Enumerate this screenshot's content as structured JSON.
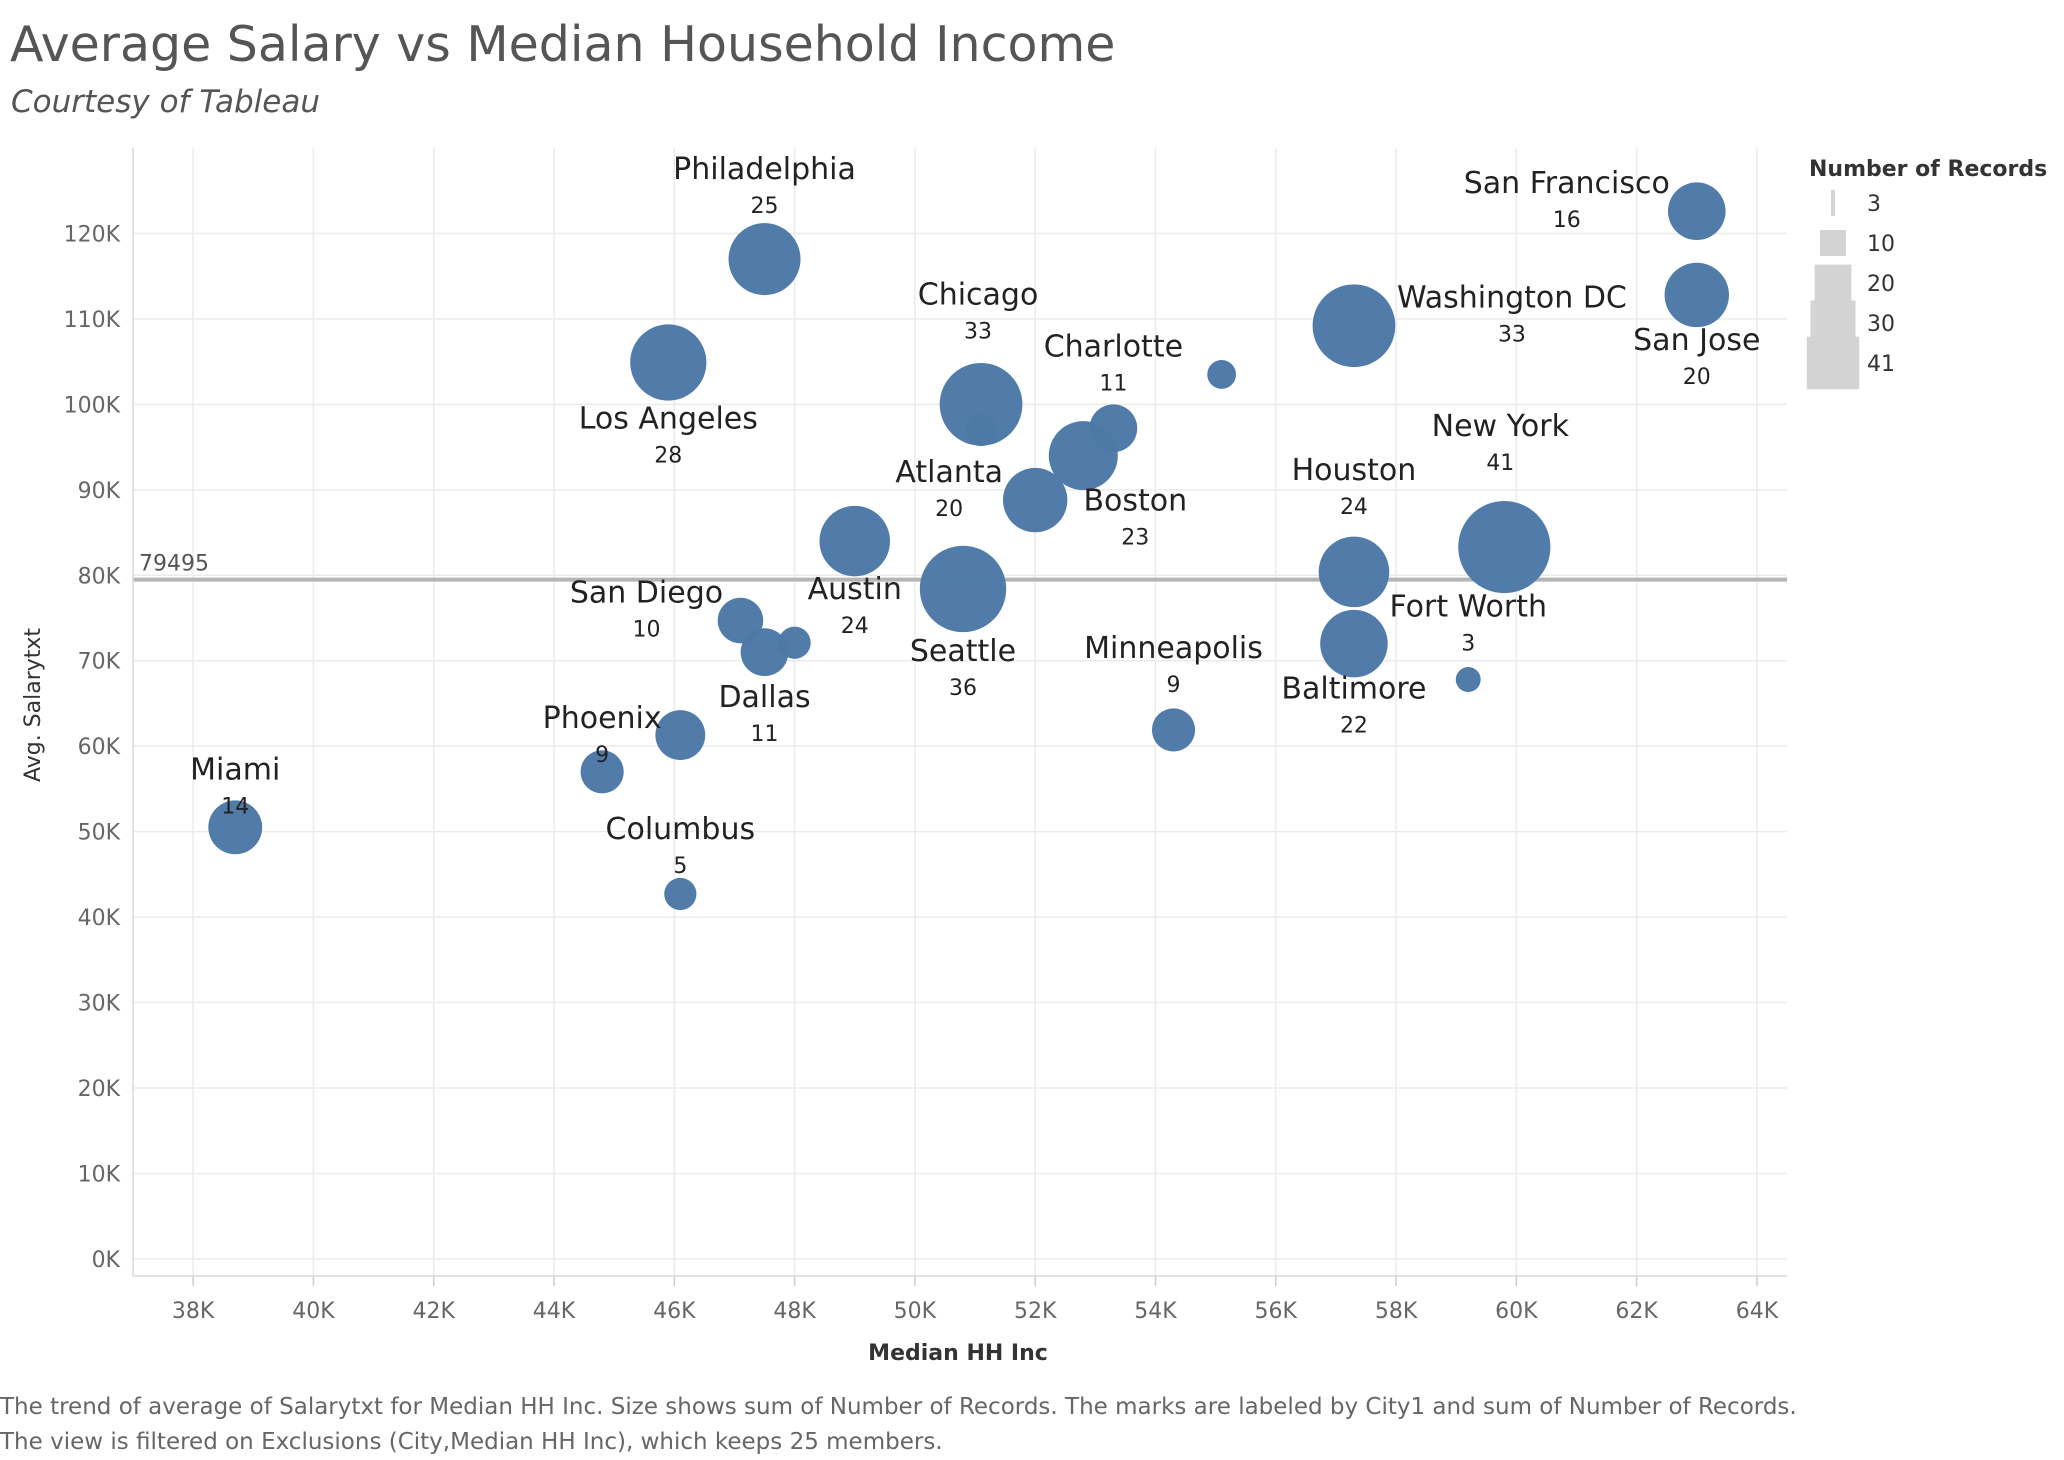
{
  "header": {
    "title": "Average Salary vs Median Household Income",
    "subtitle": "Courtesy of Tableau"
  },
  "chart_data": {
    "type": "scatter",
    "xlabel": "Median HH Inc",
    "ylabel": "Avg. Salarytxt",
    "xlim": [
      37000,
      64500
    ],
    "ylim": [
      -2000,
      130000
    ],
    "x_ticks": [
      38000,
      40000,
      42000,
      44000,
      46000,
      48000,
      50000,
      52000,
      54000,
      56000,
      58000,
      60000,
      62000,
      64000
    ],
    "x_tick_labels": [
      "38K",
      "40K",
      "42K",
      "44K",
      "46K",
      "48K",
      "50K",
      "52K",
      "54K",
      "56K",
      "58K",
      "60K",
      "62K",
      "64K"
    ],
    "y_ticks": [
      0,
      10000,
      20000,
      30000,
      40000,
      50000,
      60000,
      70000,
      80000,
      90000,
      100000,
      110000,
      120000
    ],
    "y_tick_labels": [
      "0K",
      "10K",
      "20K",
      "30K",
      "40K",
      "50K",
      "60K",
      "70K",
      "80K",
      "90K",
      "100K",
      "110K",
      "120K"
    ],
    "grid": true,
    "reference_line": {
      "value": 79495,
      "label": "79495"
    },
    "mark_color": "#4e79a7",
    "legend": {
      "title": "Number of Records",
      "position": "right",
      "entries": [
        {
          "value": 3,
          "label": "3"
        },
        {
          "value": 10,
          "label": "10"
        },
        {
          "value": 20,
          "label": "20"
        },
        {
          "value": 30,
          "label": "30"
        },
        {
          "value": 41,
          "label": "41"
        }
      ]
    },
    "points": [
      {
        "city": "Miami",
        "x": 38700,
        "y": 50500,
        "records": 14,
        "label": true
      },
      {
        "city": "Phoenix",
        "x": 44800,
        "y": 57000,
        "records": 9,
        "label": true
      },
      {
        "city": "Columbus",
        "x": 46100,
        "y": 42700,
        "records": 5,
        "label": true
      },
      {
        "city": "",
        "x": 46100,
        "y": 61300,
        "records": 12,
        "label": false
      },
      {
        "city": "Los Angeles",
        "x": 45900,
        "y": 104900,
        "records": 28,
        "label": true
      },
      {
        "city": "San Diego",
        "x": 47100,
        "y": 74700,
        "records": 10,
        "label": true
      },
      {
        "city": "Dallas",
        "x": 47500,
        "y": 71000,
        "records": 11,
        "label": true
      },
      {
        "city": "",
        "x": 48000,
        "y": 72100,
        "records": 5,
        "label": false
      },
      {
        "city": "Philadelphia",
        "x": 47500,
        "y": 117000,
        "records": 25,
        "label": true
      },
      {
        "city": "Austin",
        "x": 49000,
        "y": 84000,
        "records": 24,
        "label": true
      },
      {
        "city": "Seattle",
        "x": 50800,
        "y": 78400,
        "records": 36,
        "label": true
      },
      {
        "city": "Chicago",
        "x": 51100,
        "y": 100000,
        "records": 33,
        "label": true
      },
      {
        "city": "",
        "x": 51100,
        "y": 97000,
        "records": 5,
        "label": false
      },
      {
        "city": "Atlanta",
        "x": 52000,
        "y": 88800,
        "records": 20,
        "label": true
      },
      {
        "city": "Boston",
        "x": 52800,
        "y": 94000,
        "records": 23,
        "label": true
      },
      {
        "city": "Charlotte",
        "x": 53300,
        "y": 97200,
        "records": 11,
        "label": true
      },
      {
        "city": "Minneapolis",
        "x": 54300,
        "y": 61900,
        "records": 9,
        "label": true
      },
      {
        "city": "",
        "x": 55100,
        "y": 103500,
        "records": 4,
        "label": false
      },
      {
        "city": "Washington DC",
        "x": 57300,
        "y": 109200,
        "records": 33,
        "label": true
      },
      {
        "city": "Houston",
        "x": 57300,
        "y": 80400,
        "records": 24,
        "label": true
      },
      {
        "city": "Baltimore",
        "x": 57300,
        "y": 72000,
        "records": 22,
        "label": true
      },
      {
        "city": "Fort Worth",
        "x": 59200,
        "y": 67800,
        "records": 3,
        "label": true
      },
      {
        "city": "New York",
        "x": 59800,
        "y": 83300,
        "records": 41,
        "label": true
      },
      {
        "city": "San Francisco",
        "x": 63000,
        "y": 122600,
        "records": 16,
        "label": true
      },
      {
        "city": "San Jose",
        "x": 63000,
        "y": 112800,
        "records": 20,
        "label": true
      }
    ]
  },
  "caption": {
    "line1": "The trend of average of Salarytxt for Median HH Inc.  Size shows sum of Number of Records.  The marks are labeled by City1 and sum of Number of Records.",
    "line2": "The view is filtered on Exclusions (City,Median HH Inc), which keeps 25 members."
  }
}
